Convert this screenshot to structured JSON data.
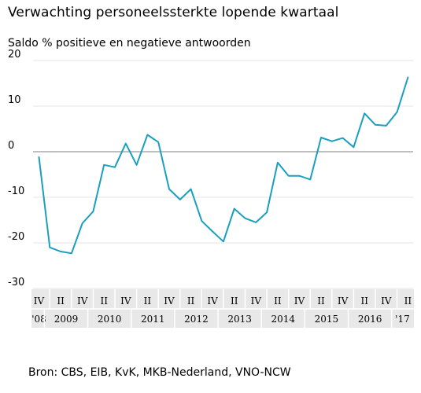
{
  "chart_data": {
    "type": "line",
    "title": "Verwachting personeelssterkte lopende kwartaal",
    "subtitle": "Saldo % positieve en negatieve antwoorden",
    "source": "Bron: CBS, EIB, KvK, MKB-Nederland, VNO-NCW",
    "ylim": [
      -30,
      20
    ],
    "yticks": [
      20,
      10,
      0,
      -10,
      -20,
      -30
    ],
    "grid": true,
    "quarter_labels": [
      "IV",
      "II",
      "IV",
      "II",
      "IV",
      "II",
      "IV",
      "II",
      "IV",
      "II",
      "IV",
      "II",
      "IV",
      "II",
      "IV",
      "II",
      "IV",
      "II"
    ],
    "year_labels": [
      "'08",
      "2009",
      "2010",
      "2011",
      "2012",
      "2013",
      "2014",
      "2015",
      "2016",
      "'17"
    ],
    "colors": {
      "line": "#1a9fbf",
      "zero": "#aaaaaa",
      "grid": "#e6e6e6",
      "axis_band": "#e8e8e8"
    },
    "series": [
      {
        "x": [
          "2008-Q4",
          "2009-Q1",
          "2009-Q2",
          "2009-Q3",
          "2009-Q4",
          "2010-Q1",
          "2010-Q2",
          "2010-Q3",
          "2010-Q4",
          "2011-Q1",
          "2011-Q2",
          "2011-Q3",
          "2011-Q4",
          "2012-Q1",
          "2012-Q2",
          "2012-Q3",
          "2012-Q4",
          "2013-Q1",
          "2013-Q2",
          "2013-Q3",
          "2013-Q4",
          "2014-Q1",
          "2014-Q2",
          "2014-Q3",
          "2014-Q4",
          "2015-Q1",
          "2015-Q2",
          "2015-Q3",
          "2015-Q4",
          "2016-Q1",
          "2016-Q2",
          "2016-Q3",
          "2016-Q4",
          "2017-Q1",
          "2017-Q2"
        ],
        "values": [
          -1.2,
          -21,
          -21.9,
          -22.3,
          -15.7,
          -13.1,
          -2.9,
          -3.4,
          1.8,
          -2.9,
          3.7,
          2.1,
          -8.2,
          -10.5,
          -8.2,
          -15.2,
          -17.5,
          -19.7,
          -12.5,
          -14.6,
          -15.5,
          -13.3,
          -2.4,
          -5.3,
          -5.3,
          -6.1,
          3.1,
          2.3,
          3,
          1,
          8.4,
          5.9,
          5.7,
          8.7,
          16.3
        ]
      }
    ]
  }
}
